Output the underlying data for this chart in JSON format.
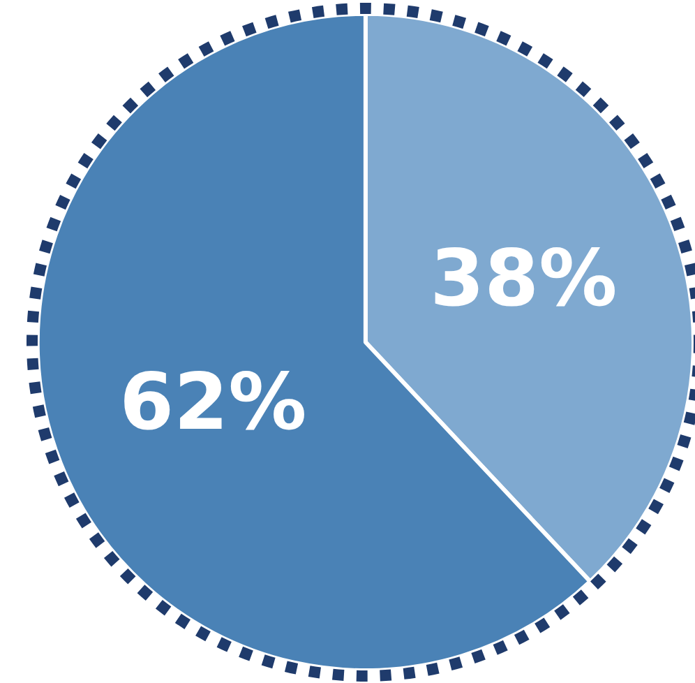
{
  "chart_data": {
    "type": "pie",
    "categories": [
      null,
      null
    ],
    "values": [
      38,
      62
    ],
    "colors": [
      "#7fa9d0",
      "#4a82b6"
    ],
    "value_labels": [
      "38%",
      "62%"
    ]
  }
}
